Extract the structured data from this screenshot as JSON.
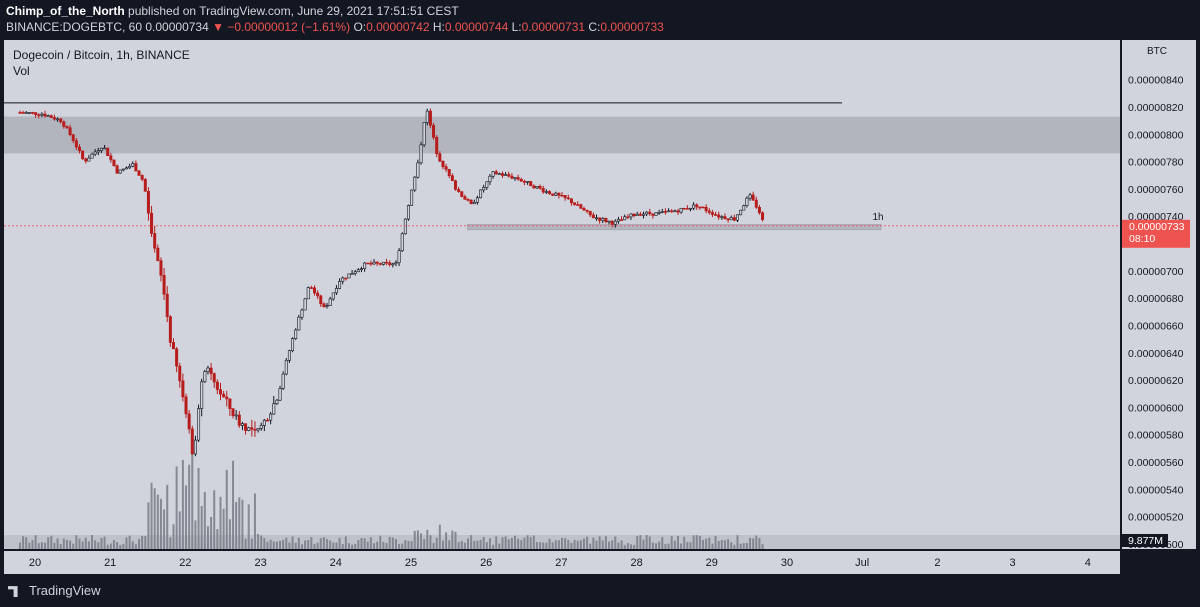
{
  "header": {
    "author": "Chimp_of_the_North",
    "published": "published on TradingView.com, June 29, 2021 17:51:51 CEST",
    "symbol": "BINANCE:DOGEBTC, 60",
    "last_price": "0.00000734",
    "change": "▼ −0.00000012 (−1.61%)",
    "o_label": "O:",
    "o_value": "0.00000742",
    "h_label": "H:",
    "h_value": "0.00000744",
    "l_label": "L:",
    "l_value": "0.00000731",
    "c_label": "C:",
    "c_value": "0.00000733"
  },
  "legend": {
    "title": "Dogecoin / Bitcoin, 1h, BINANCE",
    "vol_label": "Vol"
  },
  "price_axis": {
    "currency": "BTC",
    "current_price": "0.00000733",
    "countdown": "08:10",
    "volume_badge": "9.877M"
  },
  "annotations": {
    "zone_label": "1h"
  },
  "footer": {
    "brand": "TradingView"
  },
  "colors": {
    "chart_background": "#d1d4dc",
    "page_background": "#131722",
    "up_candle": "#131722",
    "down_candle": "#b71c1c",
    "volume": "#787b86",
    "zone": "#b2b5be",
    "price_badge": "#ef5350"
  },
  "chart_data": {
    "type": "candlestick",
    "x_ticks": [
      "20",
      "21",
      "22",
      "23",
      "24",
      "25",
      "26",
      "27",
      "28",
      "29",
      "30",
      "Jul",
      "2",
      "3",
      "4"
    ],
    "y_ticks": [
      "0.00000840",
      "0.00000820",
      "0.00000800",
      "0.00000780",
      "0.00000760",
      "0.00000740",
      "0.00000720",
      "0.00000700",
      "0.00000680",
      "0.00000660",
      "0.00000640",
      "0.00000620",
      "0.00000600",
      "0.00000580",
      "0.00000560",
      "0.00000540",
      "0.00000520",
      "0.00000500"
    ],
    "ylim": [
      5e-06,
      8.5e-06
    ],
    "resistance_line": 8.23e-06,
    "supply_zone": [
      7.86e-06,
      8.13e-06
    ],
    "support_zone": [
      7.3e-06,
      7.34e-06
    ],
    "current_price": 7.33e-06,
    "path": [
      [
        19.8,
        8.16e-06
      ],
      [
        20.1,
        8.15e-06
      ],
      [
        20.35,
        8.1e-06
      ],
      [
        20.5,
        7.97e-06
      ],
      [
        20.65,
        7.8e-06
      ],
      [
        20.9,
        7.92e-06
      ],
      [
        21.1,
        7.72e-06
      ],
      [
        21.3,
        7.78e-06
      ],
      [
        21.45,
        7.65e-06
      ],
      [
        21.55,
        7.24e-06
      ],
      [
        21.7,
        6.9e-06
      ],
      [
        21.8,
        6.5e-06
      ],
      [
        22.0,
        6e-06
      ],
      [
        22.1,
        5.65e-06
      ],
      [
        22.25,
        6.3e-06
      ],
      [
        22.45,
        6.12e-06
      ],
      [
        22.7,
        5.9e-06
      ],
      [
        22.95,
        5.8e-06
      ],
      [
        23.2,
        6.05e-06
      ],
      [
        23.45,
        6.55e-06
      ],
      [
        23.65,
        6.9e-06
      ],
      [
        23.85,
        6.72e-06
      ],
      [
        24.05,
        6.93e-06
      ],
      [
        24.4,
        7.05e-06
      ],
      [
        24.8,
        7.05e-06
      ],
      [
        24.95,
        7.45e-06
      ],
      [
        25.1,
        7.8e-06
      ],
      [
        25.2,
        8.2e-06
      ],
      [
        25.35,
        7.85e-06
      ],
      [
        25.6,
        7.6e-06
      ],
      [
        25.8,
        7.48e-06
      ],
      [
        26.1,
        7.72e-06
      ],
      [
        26.4,
        7.68e-06
      ],
      [
        26.8,
        7.58e-06
      ],
      [
        27.1,
        7.52e-06
      ],
      [
        27.4,
        7.4e-06
      ],
      [
        27.7,
        7.35e-06
      ],
      [
        28.0,
        7.42e-06
      ],
      [
        28.3,
        7.42e-06
      ],
      [
        28.6,
        7.45e-06
      ],
      [
        28.8,
        7.48e-06
      ],
      [
        29.1,
        7.4e-06
      ],
      [
        29.3,
        7.38e-06
      ],
      [
        29.5,
        7.55e-06
      ],
      [
        29.62,
        7.45e-06
      ],
      [
        29.7,
        7.33e-06
      ]
    ]
  }
}
